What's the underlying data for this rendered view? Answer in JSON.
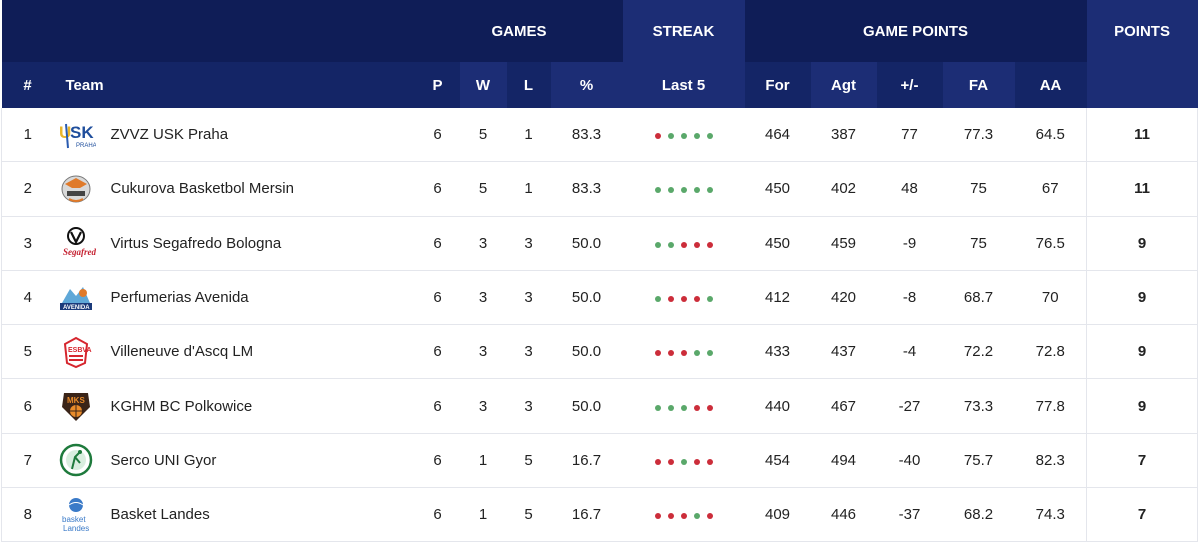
{
  "header": {
    "groups": {
      "games": "GAMES",
      "streak": "STREAK",
      "game_points": "GAME POINTS",
      "points": "POINTS"
    },
    "columns": {
      "rank": "#",
      "team": "Team",
      "p": "P",
      "w": "W",
      "l": "L",
      "pct": "%",
      "last5": "Last 5",
      "for": "For",
      "agt": "Agt",
      "diff": "+/-",
      "fa": "FA",
      "aa": "AA"
    }
  },
  "colors": {
    "win": "#5aa86a",
    "loss": "#cc2d3a",
    "header": "#0f1d57"
  },
  "rows": [
    {
      "rank": "1",
      "team": "ZVVZ USK Praha",
      "logo": "usk-praha-logo",
      "p": "6",
      "w": "5",
      "l": "1",
      "pct": "83.3",
      "streak": [
        "L",
        "W",
        "W",
        "W",
        "W"
      ],
      "for": "464",
      "agt": "387",
      "diff": "77",
      "fa": "77.3",
      "aa": "64.5",
      "points": "11"
    },
    {
      "rank": "2",
      "team": "Cukurova Basketbol Mersin",
      "logo": "cukurova-logo",
      "p": "6",
      "w": "5",
      "l": "1",
      "pct": "83.3",
      "streak": [
        "W",
        "W",
        "W",
        "W",
        "W"
      ],
      "for": "450",
      "agt": "402",
      "diff": "48",
      "fa": "75",
      "aa": "67",
      "points": "11"
    },
    {
      "rank": "3",
      "team": "Virtus Segafredo Bologna",
      "logo": "virtus-logo",
      "p": "6",
      "w": "3",
      "l": "3",
      "pct": "50.0",
      "streak": [
        "W",
        "W",
        "L",
        "L",
        "L"
      ],
      "for": "450",
      "agt": "459",
      "diff": "-9",
      "fa": "75",
      "aa": "76.5",
      "points": "9"
    },
    {
      "rank": "4",
      "team": "Perfumerias Avenida",
      "logo": "avenida-logo",
      "p": "6",
      "w": "3",
      "l": "3",
      "pct": "50.0",
      "streak": [
        "W",
        "L",
        "L",
        "L",
        "W"
      ],
      "for": "412",
      "agt": "420",
      "diff": "-8",
      "fa": "68.7",
      "aa": "70",
      "points": "9"
    },
    {
      "rank": "5",
      "team": "Villeneuve d'Ascq LM",
      "logo": "villeneuve-logo",
      "p": "6",
      "w": "3",
      "l": "3",
      "pct": "50.0",
      "streak": [
        "L",
        "L",
        "L",
        "W",
        "W"
      ],
      "for": "433",
      "agt": "437",
      "diff": "-4",
      "fa": "72.2",
      "aa": "72.8",
      "points": "9"
    },
    {
      "rank": "6",
      "team": "KGHM BC Polkowice",
      "logo": "polkowice-logo",
      "p": "6",
      "w": "3",
      "l": "3",
      "pct": "50.0",
      "streak": [
        "W",
        "W",
        "W",
        "L",
        "L"
      ],
      "for": "440",
      "agt": "467",
      "diff": "-27",
      "fa": "73.3",
      "aa": "77.8",
      "points": "9"
    },
    {
      "rank": "7",
      "team": "Serco UNI Gyor",
      "logo": "uni-gyor-logo",
      "p": "6",
      "w": "1",
      "l": "5",
      "pct": "16.7",
      "streak": [
        "L",
        "L",
        "W",
        "L",
        "L"
      ],
      "for": "454",
      "agt": "494",
      "diff": "-40",
      "fa": "75.7",
      "aa": "82.3",
      "points": "7"
    },
    {
      "rank": "8",
      "team": "Basket Landes",
      "logo": "basket-landes-logo",
      "p": "6",
      "w": "1",
      "l": "5",
      "pct": "16.7",
      "streak": [
        "L",
        "L",
        "L",
        "W",
        "L"
      ],
      "for": "409",
      "agt": "446",
      "diff": "-37",
      "fa": "68.2",
      "aa": "74.3",
      "points": "7"
    }
  ]
}
